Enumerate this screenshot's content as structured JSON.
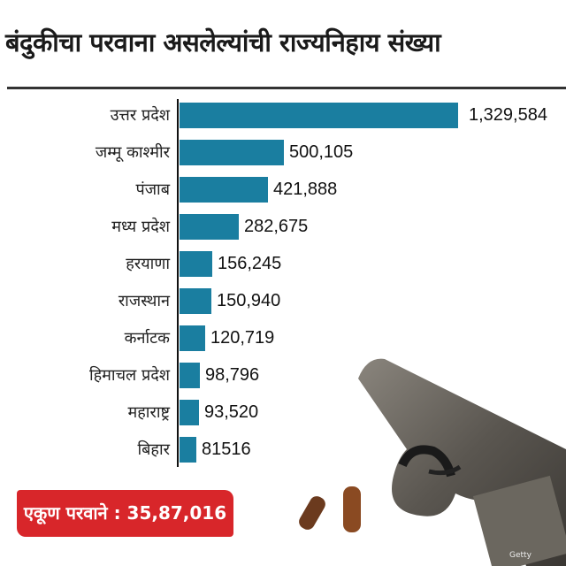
{
  "title": "बंदुकीचा परवाना असलेल्यांची राज्यनिहाय संख्या",
  "total_label": "एकूण परवाने : 35,87,016",
  "watermark": "Getty",
  "bar_color": "#1a7ea0",
  "total_color": "#d8262a",
  "chart_data": {
    "type": "bar",
    "orientation": "horizontal",
    "title": "बंदुकीचा परवाना असलेल्यांची राज्यनिहाय संख्या",
    "xlabel": "",
    "ylabel": "",
    "categories": [
      "उत्तर प्रदेश",
      "जम्मू काश्मीर",
      "पंजाब",
      "मध्य प्रदेश",
      "हरयाणा",
      "राजस्थान",
      "कर्नाटक",
      "हिमाचल प्रदेश",
      "महाराष्ट्र",
      "बिहार"
    ],
    "values": [
      1329584,
      500105,
      421888,
      282675,
      156245,
      150940,
      120719,
      98796,
      93520,
      81516
    ],
    "value_labels": [
      "1,329,584",
      "500,105",
      "421,888",
      "282,675",
      "156,245",
      "150,940",
      "120,719",
      "98,796",
      "93,520",
      "81516"
    ],
    "grid": false,
    "legend": null,
    "annotation": "एकूण परवाने : 35,87,016"
  }
}
